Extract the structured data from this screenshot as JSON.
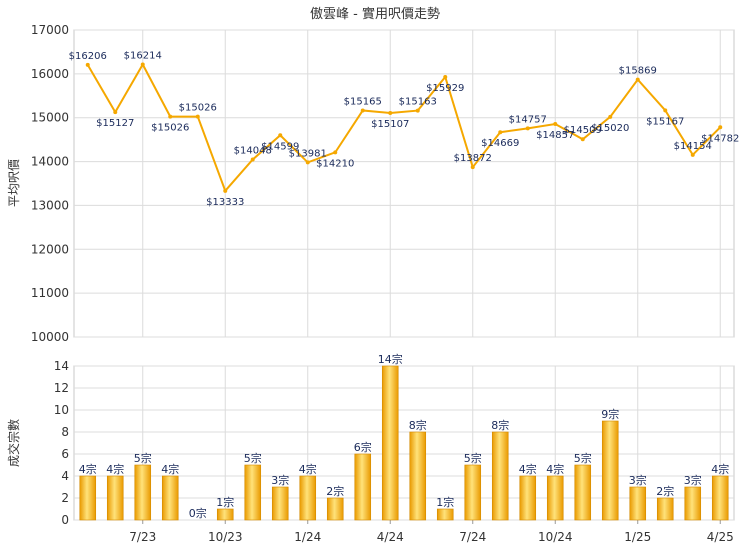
{
  "chart_data": [
    {
      "type": "line",
      "title": "傲雲峰 - 實用呎價走勢",
      "ylabel": "平均呎價",
      "ylim": [
        10000,
        17000
      ],
      "yticks": [
        "10000",
        "11000",
        "12000",
        "13000",
        "14000",
        "15000",
        "16000",
        "17000"
      ],
      "grid": true,
      "color": "#f5a800",
      "values": [
        16206,
        15127,
        16214,
        15026,
        15026,
        13333,
        14048,
        14599,
        13981,
        14210,
        15165,
        15107,
        15163,
        15929,
        13872,
        14669,
        14757,
        14857,
        14509,
        15020,
        15869,
        15167,
        14154,
        14782
      ],
      "point_labels": [
        "$16206",
        "$15127",
        "$16214",
        "$15026",
        "$15026",
        "$13333",
        "$14048",
        "$14599",
        "$13981",
        "$14210",
        "$15165",
        "$15107",
        "$15163",
        "$15929",
        "$13872",
        "$14669",
        "$14757",
        "$14857",
        "$14509",
        "$15020",
        "$15869",
        "$15167",
        "$14154",
        "$14782"
      ]
    },
    {
      "type": "bar",
      "ylabel": "成交宗數",
      "ylim": [
        0,
        14
      ],
      "yticks": [
        "0",
        "2",
        "4",
        "6",
        "8",
        "10",
        "12",
        "14"
      ],
      "grid": true,
      "color": "#f5a800",
      "values": [
        4,
        4,
        5,
        4,
        0,
        1,
        5,
        3,
        4,
        2,
        6,
        14,
        8,
        1,
        5,
        8,
        4,
        4,
        5,
        9,
        3,
        2,
        3,
        4
      ],
      "bar_labels": [
        "4宗",
        "4宗",
        "5宗",
        "4宗",
        "0宗",
        "1宗",
        "5宗",
        "3宗",
        "4宗",
        "2宗",
        "6宗",
        "14宗",
        "8宗",
        "1宗",
        "5宗",
        "8宗",
        "4宗",
        "4宗",
        "5宗",
        "9宗",
        "3宗",
        "2宗",
        "3宗",
        "4宗"
      ],
      "x_tick_labels": [
        {
          "index": 2,
          "label": "7/23"
        },
        {
          "index": 5,
          "label": "10/23"
        },
        {
          "index": 8,
          "label": "1/24"
        },
        {
          "index": 11,
          "label": "4/24"
        },
        {
          "index": 14,
          "label": "7/24"
        },
        {
          "index": 17,
          "label": "10/24"
        },
        {
          "index": 20,
          "label": "1/25"
        },
        {
          "index": 23,
          "label": "4/25"
        }
      ]
    }
  ]
}
